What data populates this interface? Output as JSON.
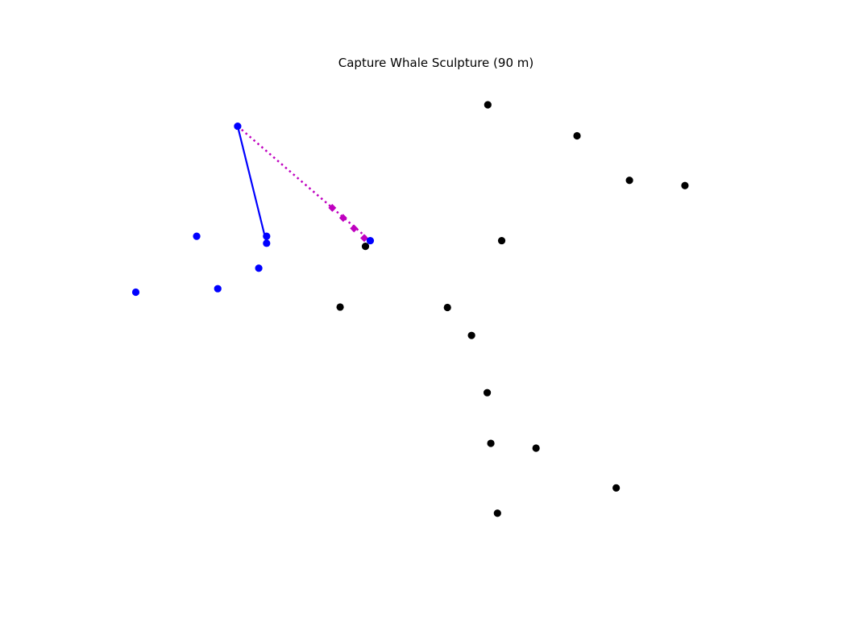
{
  "chart_data": {
    "type": "scatter",
    "title": "Capture Whale Sculpture (90 m)",
    "xlabel": "",
    "ylabel": "",
    "axes_visible": false,
    "grid": false,
    "xlim": [
      0,
      1
    ],
    "ylim": [
      0,
      1
    ],
    "colors": {
      "enemy": "#000000",
      "friendly": "#0000ff",
      "move_path": "#0000ff",
      "target_path": "#bf00bf"
    },
    "series": [
      {
        "role": "enemy",
        "points": [
          {
            "x": 0.586,
            "y": 0.976
          },
          {
            "x": 0.734,
            "y": 0.905
          },
          {
            "x": 0.821,
            "y": 0.803
          },
          {
            "x": 0.913,
            "y": 0.791
          },
          {
            "x": 0.609,
            "y": 0.665
          },
          {
            "x": 0.383,
            "y": 0.652
          },
          {
            "x": 0.341,
            "y": 0.513
          },
          {
            "x": 0.519,
            "y": 0.512
          },
          {
            "x": 0.559,
            "y": 0.448
          },
          {
            "x": 0.585,
            "y": 0.317
          },
          {
            "x": 0.591,
            "y": 0.201
          },
          {
            "x": 0.666,
            "y": 0.19
          },
          {
            "x": 0.799,
            "y": 0.099
          },
          {
            "x": 0.602,
            "y": 0.041
          }
        ]
      },
      {
        "role": "friendly",
        "points": [
          {
            "x": 0.171,
            "y": 0.927
          },
          {
            "x": 0.391,
            "y": 0.665
          },
          {
            "x": 0.219,
            "y": 0.675
          },
          {
            "x": 0.219,
            "y": 0.659
          },
          {
            "x": 0.103,
            "y": 0.675
          },
          {
            "x": 0.002,
            "y": 0.547
          },
          {
            "x": 0.206,
            "y": 0.602
          },
          {
            "x": 0.138,
            "y": 0.555
          }
        ]
      },
      {
        "role": "move_path",
        "style": "solid",
        "points": [
          {
            "x": 0.171,
            "y": 0.927
          },
          {
            "x": 0.219,
            "y": 0.659
          }
        ]
      },
      {
        "role": "target_path",
        "style": "dotted",
        "points": [
          {
            "x": 0.171,
            "y": 0.927
          },
          {
            "x": 0.391,
            "y": 0.665
          }
        ],
        "markers": [
          {
            "x": 0.328,
            "y": 0.74
          },
          {
            "x": 0.346,
            "y": 0.717
          },
          {
            "x": 0.364,
            "y": 0.693
          },
          {
            "x": 0.381,
            "y": 0.671
          }
        ]
      }
    ]
  }
}
